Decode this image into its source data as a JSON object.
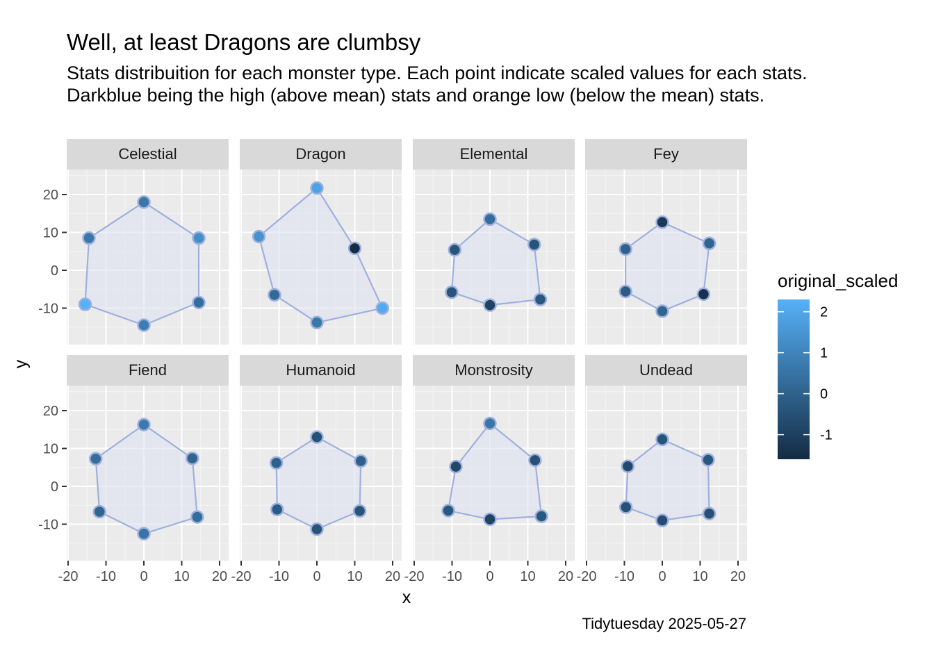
{
  "title": "Well, at least Dragons are clumbsy",
  "subtitle": "Stats distribuition for each monster type. Each point indicate scaled values for each stats. Darkblue being the high (above mean) stats and orange low (below the mean) stats.",
  "caption": "Tidytuesday 2025-05-27",
  "chart_data": {
    "type": "scatter",
    "xlabel": "x",
    "ylabel": "y",
    "xlim": [
      -20,
      22
    ],
    "ylim": [
      -20,
      26
    ],
    "x_ticks": [
      -20,
      -10,
      0,
      10,
      20
    ],
    "x_tick_labels": [
      "-20",
      "-10",
      "0",
      "10",
      "20"
    ],
    "y_ticks": [
      -10,
      0,
      10,
      20
    ],
    "y_tick_labels": [
      "-10",
      "0",
      "10",
      "20"
    ],
    "grid": true,
    "legend": {
      "title": "original_scaled",
      "position": "right",
      "range": [
        -1.6,
        2.3
      ],
      "ticks": [
        2,
        1,
        0,
        -1
      ],
      "tick_labels": [
        "2",
        "1",
        "0",
        "-1"
      ],
      "low_color": "#132B43",
      "high_color": "#56B1F7"
    },
    "colors": {
      "polygon_line": "#9fb0de",
      "polygon_fill": "#dde3f1",
      "point_border": "#9fb0de",
      "panel_bg": "#ebebeb",
      "strip_bg": "#d9d9d9"
    },
    "panels": [
      {
        "label": "Celestial",
        "points": [
          {
            "x": 0,
            "y": 18,
            "value": 0.6
          },
          {
            "x": 14.5,
            "y": 8.5,
            "value": 1.3
          },
          {
            "x": 14.5,
            "y": -8.5,
            "value": 0.3
          },
          {
            "x": 0,
            "y": -14.5,
            "value": 0.8
          },
          {
            "x": -15.5,
            "y": -9,
            "value": 2.3
          },
          {
            "x": -14.5,
            "y": 8.5,
            "value": 0.6
          }
        ]
      },
      {
        "label": "Dragon",
        "points": [
          {
            "x": 0,
            "y": 21.7,
            "value": 1.9
          },
          {
            "x": 10,
            "y": 5.8,
            "value": -1.5
          },
          {
            "x": 17.3,
            "y": -10,
            "value": 2.1
          },
          {
            "x": 0,
            "y": -13.8,
            "value": 0.6
          },
          {
            "x": -11.2,
            "y": -6.5,
            "value": 0.2
          },
          {
            "x": -15.3,
            "y": 8.9,
            "value": 1.4
          }
        ]
      },
      {
        "label": "Elemental",
        "points": [
          {
            "x": 0,
            "y": 13.5,
            "value": 0.3
          },
          {
            "x": 11.7,
            "y": 6.8,
            "value": -0.4
          },
          {
            "x": 13.3,
            "y": -7.7,
            "value": -0.3
          },
          {
            "x": 0,
            "y": -9.2,
            "value": -0.9
          },
          {
            "x": -10.1,
            "y": -5.8,
            "value": -0.4
          },
          {
            "x": -9.3,
            "y": 5.4,
            "value": -0.4
          }
        ]
      },
      {
        "label": "Fey",
        "points": [
          {
            "x": 0,
            "y": 12.7,
            "value": -1.2
          },
          {
            "x": 12.4,
            "y": 7.1,
            "value": 0.1
          },
          {
            "x": 10.9,
            "y": -6.3,
            "value": -1.4
          },
          {
            "x": 0,
            "y": -10.8,
            "value": 0.1
          },
          {
            "x": -9.7,
            "y": -5.6,
            "value": -0.2
          },
          {
            "x": -9.7,
            "y": 5.6,
            "value": 0.0
          }
        ]
      },
      {
        "label": "Fiend",
        "points": [
          {
            "x": 0,
            "y": 16.3,
            "value": 0.7
          },
          {
            "x": 12.8,
            "y": 7.4,
            "value": 0.1
          },
          {
            "x": 14.1,
            "y": -8.1,
            "value": 0.3
          },
          {
            "x": 0,
            "y": -12.5,
            "value": 0.5
          },
          {
            "x": -11.7,
            "y": -6.7,
            "value": 0.1
          },
          {
            "x": -12.7,
            "y": 7.3,
            "value": 0.3
          }
        ]
      },
      {
        "label": "Humanoid",
        "points": [
          {
            "x": 0,
            "y": 13,
            "value": -0.5
          },
          {
            "x": 11.6,
            "y": 6.7,
            "value": -0.1
          },
          {
            "x": 11.3,
            "y": -6.5,
            "value": -0.4
          },
          {
            "x": 0,
            "y": -11.3,
            "value": -0.4
          },
          {
            "x": -10.5,
            "y": -6.1,
            "value": -0.2
          },
          {
            "x": -10.7,
            "y": 6.2,
            "value": 0.0
          }
        ]
      },
      {
        "label": "Monstrosity",
        "points": [
          {
            "x": 0,
            "y": 16.6,
            "value": 0.6
          },
          {
            "x": 11.9,
            "y": 6.9,
            "value": -0.5
          },
          {
            "x": 13.6,
            "y": -7.9,
            "value": -0.3
          },
          {
            "x": 0,
            "y": -8.7,
            "value": -0.9
          },
          {
            "x": -11,
            "y": -6.4,
            "value": -0.3
          },
          {
            "x": -9,
            "y": 5.2,
            "value": -0.8
          }
        ]
      },
      {
        "label": "Undead",
        "points": [
          {
            "x": 0,
            "y": 12.4,
            "value": -0.4
          },
          {
            "x": 12.1,
            "y": 7,
            "value": -0.3
          },
          {
            "x": 12.4,
            "y": -7.2,
            "value": -0.5
          },
          {
            "x": 0,
            "y": -9,
            "value": -0.6
          },
          {
            "x": -9.6,
            "y": -5.5,
            "value": -0.5
          },
          {
            "x": -9.1,
            "y": 5.3,
            "value": -0.7
          }
        ]
      }
    ]
  }
}
